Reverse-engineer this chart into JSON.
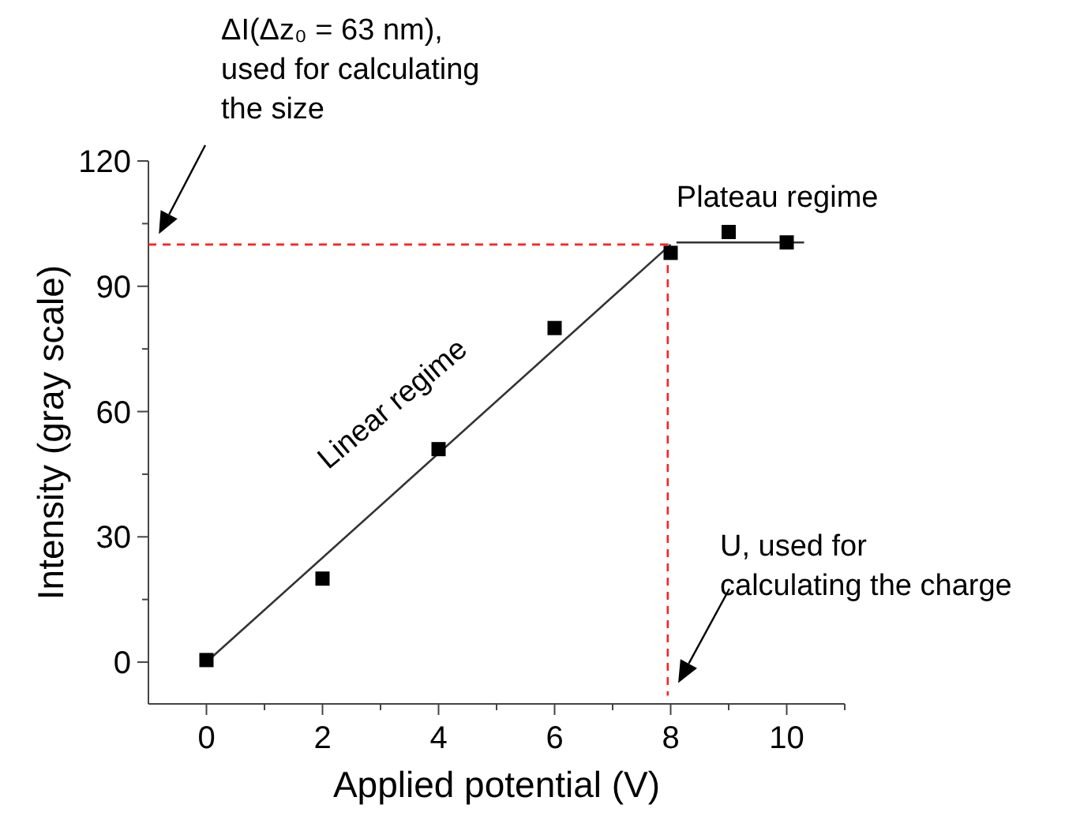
{
  "chart_data": {
    "type": "scatter",
    "xlabel": "Applied potential (V)",
    "ylabel": "Intensity (gray scale)",
    "xlim": [
      -1,
      11
    ],
    "ylim": [
      -10,
      120
    ],
    "xticks": [
      0,
      {
        "value": 1,
        "label": null
      },
      2,
      {
        "value": 3,
        "label": null
      },
      4,
      {
        "value": 5,
        "label": null
      },
      6,
      {
        "value": 7,
        "label": null
      },
      8,
      {
        "value": 9,
        "label": null
      },
      10,
      {
        "value": 11,
        "label": null
      }
    ],
    "yticks": [
      0,
      {
        "value": 15,
        "label": null
      },
      30,
      {
        "value": 45,
        "label": null
      },
      60,
      {
        "value": 75,
        "label": null
      },
      90,
      {
        "value": 105,
        "label": null
      },
      120
    ],
    "series": [
      {
        "type": "line",
        "color": "#333333",
        "x": [
          0,
          8
        ],
        "values": [
          0,
          100
        ],
        "line_style": "solid",
        "marker": "none"
      },
      {
        "type": "line",
        "color": "#333333",
        "x": [
          8.1,
          10.3
        ],
        "values": [
          100.5,
          100.5
        ],
        "line_style": "solid",
        "marker": "none"
      },
      {
        "type": "line",
        "color": "#ff2020",
        "x": [
          -1,
          7.95,
          7.95
        ],
        "values": [
          100,
          100,
          -8
        ],
        "line_style": "dashed",
        "marker": "none"
      },
      {
        "color": "#000000",
        "x": [
          0,
          2,
          4,
          6,
          8,
          9,
          10
        ],
        "values": [
          0.5,
          20,
          51,
          80,
          98,
          103,
          100.5
        ],
        "marker": "square"
      }
    ],
    "annotations": [
      "ΔI(Δz₀ = 63 nm),\nused for calculating\nthe size",
      "Plateau regime",
      "Linear regime",
      "U, used for\ncalculating the charge"
    ]
  }
}
